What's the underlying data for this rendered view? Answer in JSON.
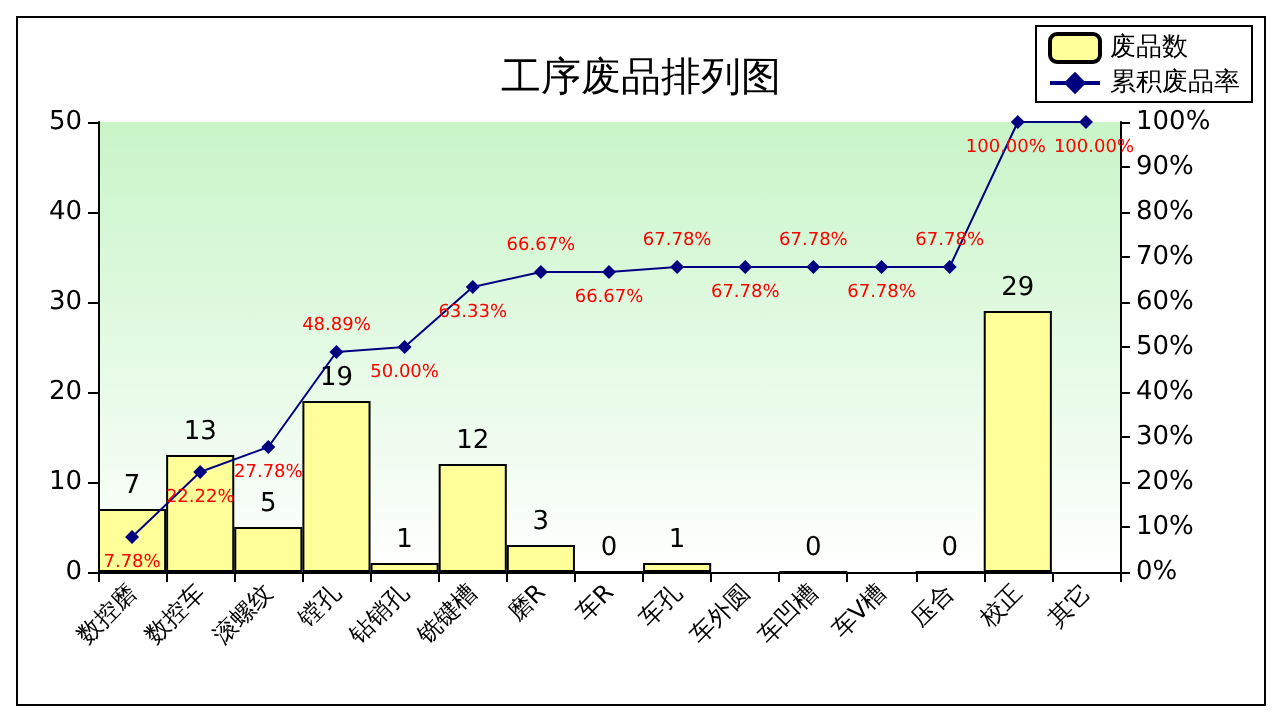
{
  "chart_data": {
    "type": "bar",
    "title": "工序废品排列图",
    "categories": [
      "数控磨",
      "数控车",
      "滚螺纹",
      "镗孔",
      "钻销孔",
      "铣键槽",
      "磨R",
      "车R",
      "车孔",
      "车外圆",
      "车凹槽",
      "车V槽",
      "压合",
      "校正",
      "其它"
    ],
    "series": [
      {
        "name": "废品数",
        "color": "#ffff99",
        "values": [
          7,
          13,
          5,
          19,
          1,
          12,
          3,
          0,
          1,
          null,
          0,
          null,
          0,
          29,
          null
        ],
        "value_labels": [
          "7",
          "13",
          "5",
          "19",
          "1",
          "12",
          "3",
          "0",
          "1",
          null,
          "0",
          null,
          "0",
          "29",
          null
        ]
      },
      {
        "name": "累积废品率",
        "type": "line",
        "axis": "y2",
        "color": "#000080",
        "values": [
          7.78,
          22.22,
          27.78,
          48.89,
          50.0,
          63.33,
          66.67,
          66.67,
          67.78,
          67.78,
          67.78,
          67.78,
          67.78,
          100.0,
          100.0
        ],
        "value_labels": [
          "7.78%",
          "22.22%",
          "27.78%",
          "48.89%",
          "50.00%",
          "63.33%",
          "66.67%",
          "66.67%",
          "67.78%",
          "67.78%",
          "67.78%",
          "67.78%",
          "67.78%",
          "100.00%",
          "100.00%"
        ]
      }
    ],
    "ylim": [
      0,
      50
    ],
    "yticks": [
      0,
      10,
      20,
      30,
      40,
      50
    ],
    "y2lim": [
      0,
      100
    ],
    "y2ticks": [
      {
        "value": 0,
        "label": "0%"
      },
      {
        "value": 10,
        "label": "10%"
      },
      {
        "value": 20,
        "label": "20%"
      },
      {
        "value": 30,
        "label": "30%"
      },
      {
        "value": 40,
        "label": "40%"
      },
      {
        "value": 50,
        "label": "50%"
      },
      {
        "value": 60,
        "label": "60%"
      },
      {
        "value": 70,
        "label": "70%"
      },
      {
        "value": 80,
        "label": "80%"
      },
      {
        "value": 90,
        "label": "90%"
      },
      {
        "value": 100,
        "label": "100%"
      }
    ],
    "legend": "top right",
    "marker": "diamond",
    "grid": false
  }
}
